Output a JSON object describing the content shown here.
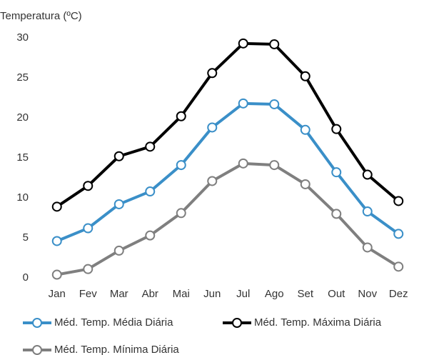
{
  "chart_data": {
    "type": "line",
    "y_label": "Temperatura (ºC)",
    "categories": [
      "Jan",
      "Fev",
      "Mar",
      "Abr",
      "Mai",
      "Jun",
      "Jul",
      "Ago",
      "Set",
      "Out",
      "Nov",
      "Dez"
    ],
    "series": [
      {
        "name": "Méd. Temp. Média Diária",
        "color": "#3a8fc8",
        "values": [
          4.6,
          6.2,
          9.2,
          10.8,
          14.1,
          18.8,
          21.8,
          21.7,
          18.5,
          13.2,
          8.3,
          5.5
        ]
      },
      {
        "name": "Méd. Temp. Máxima Diária",
        "color": "#000000",
        "values": [
          8.9,
          11.5,
          15.2,
          16.4,
          20.2,
          25.6,
          29.3,
          29.2,
          25.2,
          18.6,
          12.9,
          9.6
        ]
      },
      {
        "name": "Méd. Temp. Mínima Diária",
        "color": "#7f7f7f",
        "values": [
          0.4,
          1.1,
          3.4,
          5.3,
          8.1,
          12.1,
          14.3,
          14.1,
          11.7,
          8.0,
          3.8,
          1.4
        ]
      }
    ],
    "ylim": [
      0,
      30
    ],
    "yticks": [
      0,
      5,
      10,
      15,
      20,
      25,
      30
    ],
    "grid": false
  }
}
